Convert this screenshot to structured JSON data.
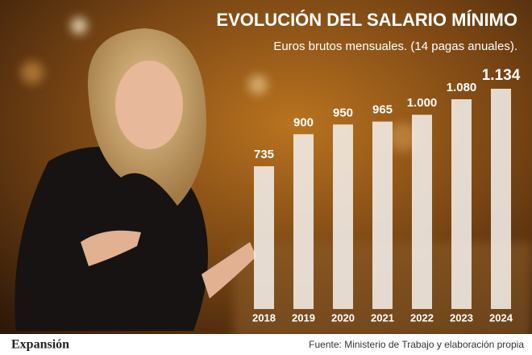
{
  "chart_data": {
    "type": "bar",
    "title": "EVOLUCIÓN DEL SALARIO MÍNIMO",
    "subtitle": "Euros brutos mensuales. (14 pagas anuales).",
    "categories": [
      "2018",
      "2019",
      "2020",
      "2021",
      "2022",
      "2023",
      "2024"
    ],
    "values": [
      735,
      900,
      950,
      965,
      1000,
      1080,
      1134
    ],
    "value_labels": [
      "735",
      "900",
      "950",
      "965",
      "1.000",
      "1.080",
      "1.134"
    ],
    "color": "#f2eee9",
    "source": "Fuente: Ministerio de Trabajo y elaboración propia",
    "brand": "Expansión"
  }
}
